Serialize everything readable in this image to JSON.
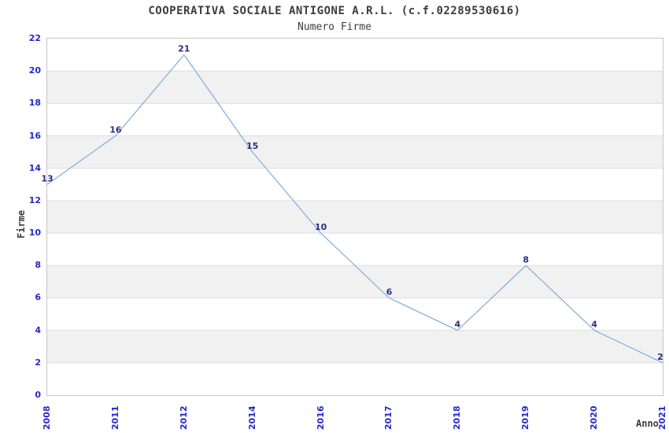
{
  "chart_data": {
    "type": "line",
    "title": "COOPERATIVA SOCIALE ANTIGONE A.R.L. (c.f.02289530616)",
    "subtitle": "Numero Firme",
    "xlabel": "Anno",
    "ylabel": "Firme",
    "categories": [
      "2008",
      "2011",
      "2012",
      "2014",
      "2016",
      "2017",
      "2018",
      "2019",
      "2020",
      "2021"
    ],
    "values": [
      13,
      16,
      21,
      15,
      10,
      6,
      4,
      8,
      4,
      2
    ],
    "ylim": [
      0,
      22
    ],
    "ytick_step": 2,
    "grid": "horizontal-bands-alternating",
    "legend": "none",
    "colors": {
      "line": "#7aaede",
      "data_label": "#2e2e80",
      "tick_label": "#2727cc",
      "band": "#f1f1f1",
      "gridline": "#dedede",
      "plot_border": "#c6c6c6",
      "text": "#3d3d3d",
      "background": "#ffffff"
    }
  }
}
